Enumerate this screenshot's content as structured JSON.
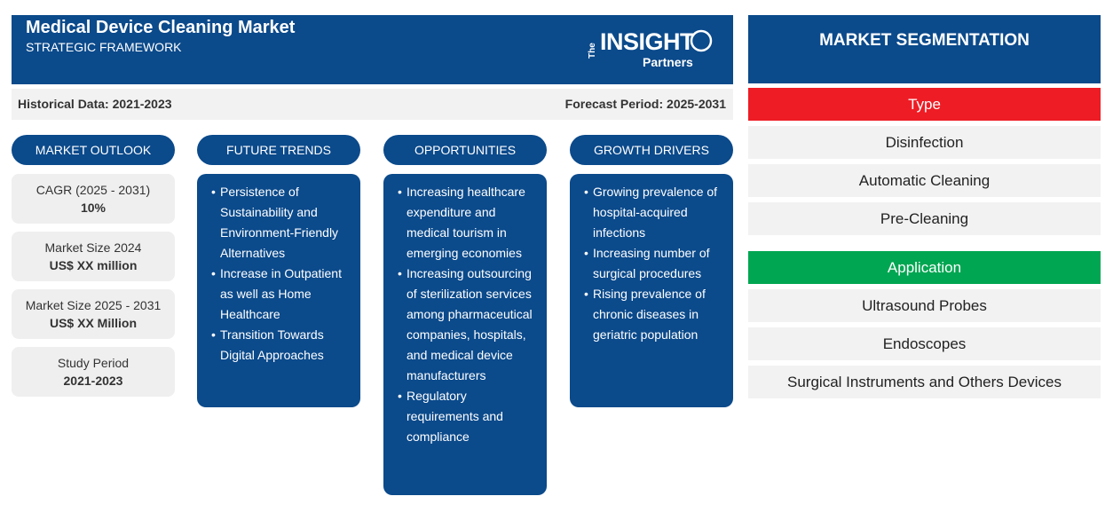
{
  "header": {
    "title": "Medical Device Cleaning Market",
    "subtitle": "STRATEGIC FRAMEWORK",
    "logo": {
      "the": "The",
      "insight": "INSIGHT",
      "partners": "Partners"
    }
  },
  "period": {
    "historical": "Historical Data: 2021-2023",
    "forecast": "Forecast Period: 2025-2031"
  },
  "columns": {
    "outlook": "MARKET OUTLOOK",
    "trends": "FUTURE TRENDS",
    "opportunities": "OPPORTUNITIES",
    "drivers": "GROWTH DRIVERS"
  },
  "outlook_cards": [
    {
      "label": "CAGR (2025 - 2031)",
      "value": "10%"
    },
    {
      "label": "Market Size 2024",
      "value": "US$ XX million"
    },
    {
      "label": "Market Size 2025 - 2031",
      "value": "US$ XX Million"
    },
    {
      "label": "Study Period",
      "value": "2021-2023"
    }
  ],
  "trends": [
    "Persistence of Sustainability and Environment-Friendly Alternatives",
    "Increase in Outpatient as well as Home Healthcare",
    "Transition Towards Digital Approaches"
  ],
  "opportunities": [
    "Increasing healthcare expenditure and medical tourism in emerging economies",
    "Increasing outsourcing of sterilization services among pharmaceutical companies, hospitals, and medical device manufacturers",
    "Regulatory requirements and compliance"
  ],
  "drivers": [
    "Growing prevalence of hospital-acquired infections",
    "Increasing number of surgical procedures",
    "Rising prevalence of chronic diseases in geriatric population"
  ],
  "segmentation": {
    "title": "MARKET SEGMENTATION",
    "type_label": "Type",
    "type_color": "#ee1c25",
    "type_items": [
      "Disinfection",
      "Automatic Cleaning",
      "Pre-Cleaning"
    ],
    "application_label": "Application",
    "application_color": "#00a651",
    "application_items": [
      "Ultrasound Probes",
      "Endoscopes",
      "Surgical Instruments and Others Devices"
    ]
  }
}
